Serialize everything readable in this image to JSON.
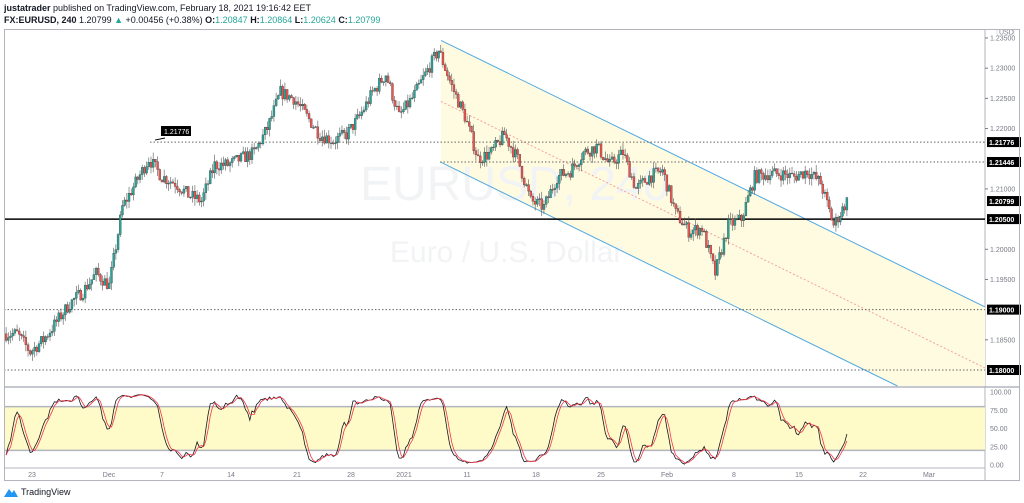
{
  "header": {
    "author": "justatrader",
    "published_text": "published on TradingView.com, February 18, 2021 19:16:42 EET",
    "symbol": "FX:EURUSD, 240",
    "last": "1.20799",
    "change": "+0.00456 (+0.38%)",
    "o_label": "O:",
    "o": "1.20847",
    "h_label": "H:",
    "h": "1.20864",
    "l_label": "L:",
    "l": "1.20624",
    "c_label": "C:",
    "c": "1.20799"
  },
  "watermark": {
    "symbol": "EURUSD, 240",
    "description": "Euro / U.S. Dollar"
  },
  "footer": {
    "brand": "TradingView",
    "logo_icon": "tradingview-logo-icon"
  },
  "colors": {
    "up": "#26a69a",
    "down": "#ef5350",
    "channel_line": "#4fa8e0",
    "channel_fill": "#fffbe0",
    "stoch_k": "#131722",
    "stoch_d": "#f23645",
    "stoch_band": "#fffbc8"
  },
  "chart_data": [
    {
      "type": "candlestick",
      "currency_badge": "USD",
      "y_ticks": [
        "1.23500",
        "1.23000",
        "1.22500",
        "1.22000",
        "1.21000",
        "1.20000",
        "1.19500",
        "1.18500"
      ],
      "ylim": [
        1.18,
        1.235
      ],
      "x_ticks": [
        "23",
        "Dec",
        "7",
        "14",
        "21",
        "28",
        "2021",
        "11",
        "18",
        "25",
        "Feb",
        "8",
        "15",
        "22",
        "Mar"
      ],
      "daily_closes": [
        [
          "Nov 19",
          1.186
        ],
        [
          "Nov 20",
          1.183
        ],
        [
          "Nov 23",
          1.185
        ],
        [
          "Nov 24",
          1.188
        ],
        [
          "Nov 25",
          1.191
        ],
        [
          "Nov 26",
          1.193
        ],
        [
          "Nov 27",
          1.196
        ],
        [
          "Nov 30",
          1.194
        ],
        [
          "Dec 1",
          1.207
        ],
        [
          "Dec 2",
          1.211
        ],
        [
          "Dec 3",
          1.215
        ],
        [
          "Dec 4",
          1.212
        ],
        [
          "Dec 7",
          1.211
        ],
        [
          "Dec 8",
          1.209
        ],
        [
          "Dec 9",
          1.208
        ],
        [
          "Dec 10",
          1.214
        ],
        [
          "Dec 11",
          1.214
        ],
        [
          "Dec 14",
          1.215
        ],
        [
          "Dec 15",
          1.216
        ],
        [
          "Dec 16",
          1.22
        ],
        [
          "Dec 17",
          1.226
        ],
        [
          "Dec 18",
          1.225
        ],
        [
          "Dec 21",
          1.222
        ],
        [
          "Dec 22",
          1.219
        ],
        [
          "Dec 23",
          1.218
        ],
        [
          "Dec 24",
          1.219
        ],
        [
          "Dec 28",
          1.222
        ],
        [
          "Dec 29",
          1.226
        ],
        [
          "Dec 30",
          1.229
        ],
        [
          "Dec 31",
          1.222
        ],
        [
          "Jan 4",
          1.225
        ],
        [
          "Jan 5",
          1.229
        ],
        [
          "Jan 6",
          1.233
        ],
        [
          "Jan 7",
          1.227
        ],
        [
          "Jan 8",
          1.222
        ],
        [
          "Jan 11",
          1.215
        ],
        [
          "Jan 12",
          1.216
        ],
        [
          "Jan 13",
          1.219
        ],
        [
          "Jan 14",
          1.215
        ],
        [
          "Jan 15",
          1.208
        ],
        [
          "Jan 18",
          1.207
        ],
        [
          "Jan 19",
          1.212
        ],
        [
          "Jan 20",
          1.213
        ],
        [
          "Jan 21",
          1.216
        ],
        [
          "Jan 22",
          1.217
        ],
        [
          "Jan 25",
          1.214
        ],
        [
          "Jan 26",
          1.216
        ],
        [
          "Jan 27",
          1.21
        ],
        [
          "Jan 28",
          1.212
        ],
        [
          "Jan 29",
          1.213
        ],
        [
          "Feb 1",
          1.206
        ],
        [
          "Feb 2",
          1.203
        ],
        [
          "Feb 3",
          1.2035
        ],
        [
          "Feb 4",
          1.196
        ],
        [
          "Feb 5",
          1.204
        ],
        [
          "Feb 8",
          1.205
        ],
        [
          "Feb 9",
          1.212
        ],
        [
          "Feb 10",
          1.2125
        ],
        [
          "Feb 11",
          1.2125
        ],
        [
          "Feb 12",
          1.212
        ],
        [
          "Feb 15",
          1.213
        ],
        [
          "Feb 16",
          1.211
        ],
        [
          "Feb 17",
          1.204
        ],
        [
          "Feb 18",
          1.208
        ]
      ],
      "horizontal_levels": [
        {
          "price": "1.21776",
          "style": "dotted"
        },
        {
          "price": "1.21446",
          "style": "dotted"
        },
        {
          "price": "1.20799",
          "style": "last-price"
        },
        {
          "price": "1.20500",
          "style": "solid"
        },
        {
          "price": "1.19000",
          "style": "dotted"
        },
        {
          "price": "1.18000",
          "style": "dotted"
        }
      ],
      "callout_label": "1.21776",
      "channel": {
        "type": "parallel-channel",
        "upper_start": 1.2346,
        "lower_start": 1.2144,
        "start_date": "Jan 6"
      }
    },
    {
      "type": "line",
      "indicator": "stochastic",
      "y_ticks": [
        "100.00",
        "75.00",
        "50.00",
        "25.00",
        "0.00"
      ],
      "ylim": [
        0,
        100
      ],
      "band": [
        20,
        80
      ]
    }
  ]
}
